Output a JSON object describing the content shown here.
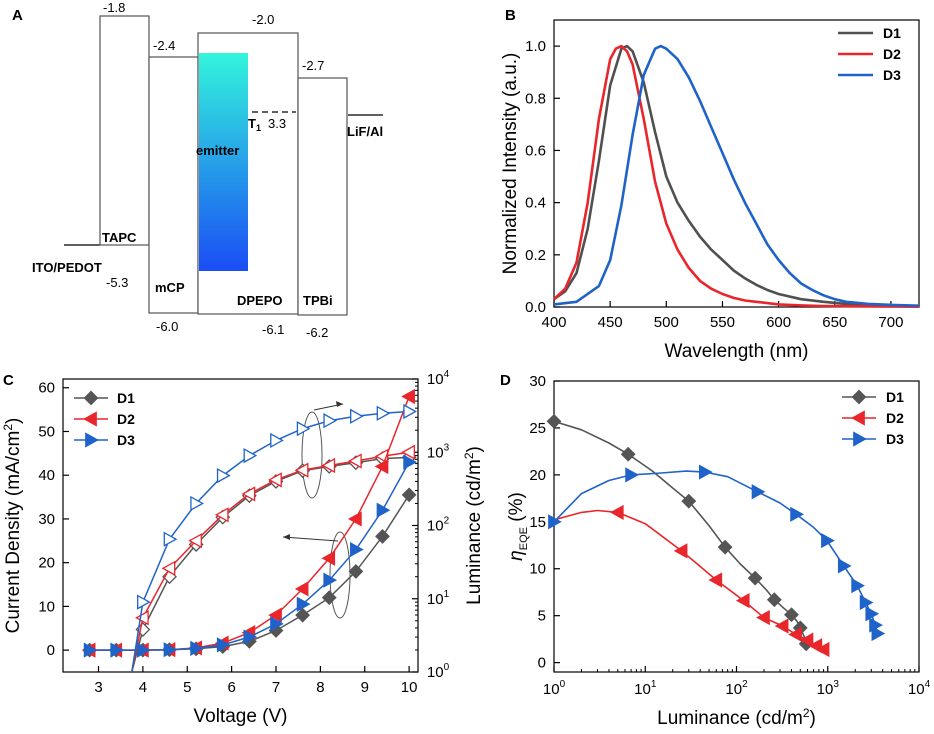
{
  "panels": [
    {
      "id": "A",
      "label": "A"
    },
    {
      "id": "B",
      "label": "B"
    },
    {
      "id": "C",
      "label": "C"
    },
    {
      "id": "D",
      "label": "D"
    }
  ],
  "energy_diagram": {
    "layers": [
      {
        "name": "ITO/PEDOT",
        "level": "-5.3"
      },
      {
        "name": "TAPC",
        "top": "-1.8",
        "bottom": "-5.3"
      },
      {
        "name": "mCP",
        "top": "-2.4",
        "bottom": "-6.0"
      },
      {
        "name": "DPEPO",
        "top": "-2.0",
        "bottom": "-6.1"
      },
      {
        "name": "TPBi",
        "top": "-2.7",
        "bottom": "-6.2"
      },
      {
        "name": "LiF/Al",
        "level": ""
      }
    ],
    "emitter_label": "emitter",
    "triplet_label": "T",
    "triplet_sub": "1",
    "triplet_value": "3.3",
    "colors": {
      "emitter_top": "#33f5dc",
      "emitter_bottom": "#1a4df5"
    }
  },
  "chart_data": [
    {
      "id": "B",
      "type": "line",
      "title": "",
      "xlabel": "Wavelength (nm)",
      "ylabel": "Normalized Intensity (a.u.)",
      "xlim": [
        400,
        725
      ],
      "ylim": [
        0,
        1.1
      ],
      "xticks": [
        400,
        450,
        500,
        550,
        600,
        650,
        700
      ],
      "yticks": [
        0.0,
        0.2,
        0.4,
        0.6,
        0.8,
        1.0
      ],
      "xtick_labels": [
        "400",
        "450",
        "500",
        "550",
        "600",
        "650",
        "700"
      ],
      "ytick_labels": [
        "0.0",
        "0.2",
        "0.4",
        "0.6",
        "0.8",
        "1.0"
      ],
      "legend": {
        "position": "top-right"
      },
      "series": [
        {
          "name": "D1",
          "color": "#505050",
          "x": [
            400,
            410,
            420,
            430,
            440,
            450,
            460,
            465,
            470,
            480,
            490,
            500,
            510,
            520,
            530,
            540,
            550,
            560,
            570,
            580,
            590,
            600,
            620,
            640,
            660,
            680,
            700,
            725
          ],
          "y": [
            0.03,
            0.06,
            0.13,
            0.3,
            0.56,
            0.85,
            0.99,
            1.0,
            0.98,
            0.86,
            0.67,
            0.5,
            0.4,
            0.33,
            0.27,
            0.22,
            0.18,
            0.14,
            0.11,
            0.085,
            0.065,
            0.05,
            0.03,
            0.02,
            0.012,
            0.008,
            0.005,
            0.003
          ]
        },
        {
          "name": "D2",
          "color": "#e8262c",
          "x": [
            400,
            410,
            420,
            430,
            440,
            450,
            455,
            460,
            465,
            470,
            480,
            490,
            500,
            510,
            520,
            530,
            540,
            550,
            560,
            570,
            580,
            600,
            620,
            640,
            660,
            700,
            725
          ],
          "y": [
            0.03,
            0.07,
            0.17,
            0.4,
            0.72,
            0.95,
            0.99,
            1.0,
            0.98,
            0.93,
            0.72,
            0.48,
            0.32,
            0.22,
            0.15,
            0.1,
            0.07,
            0.05,
            0.035,
            0.025,
            0.02,
            0.01,
            0.006,
            0.004,
            0.003,
            0.002,
            0.001
          ]
        },
        {
          "name": "D3",
          "color": "#1f63c9",
          "x": [
            400,
            420,
            440,
            450,
            460,
            470,
            480,
            490,
            495,
            500,
            510,
            520,
            530,
            540,
            550,
            560,
            570,
            580,
            590,
            600,
            610,
            620,
            630,
            640,
            650,
            660,
            680,
            700,
            725
          ],
          "y": [
            0.01,
            0.02,
            0.08,
            0.18,
            0.39,
            0.66,
            0.89,
            0.99,
            1.0,
            0.99,
            0.95,
            0.88,
            0.79,
            0.69,
            0.59,
            0.49,
            0.4,
            0.32,
            0.24,
            0.18,
            0.13,
            0.09,
            0.065,
            0.045,
            0.03,
            0.02,
            0.012,
            0.008,
            0.005
          ]
        }
      ]
    },
    {
      "id": "C",
      "type": "line",
      "xlabel": "Voltage (V)",
      "ylabel": "Current Density (mA/cm",
      "ylabel_sup": "2",
      "ylabel_tail": ")",
      "y2label": "Luminance (cd/m",
      "y2label_sup": "2",
      "y2label_tail": ")",
      "xlim": [
        2.2,
        10.2
      ],
      "ylim": [
        -5,
        62
      ],
      "y2lim_log": [
        0,
        4
      ],
      "xticks": [
        3,
        4,
        5,
        6,
        7,
        8,
        9,
        10
      ],
      "xtick_labels": [
        "3",
        "4",
        "5",
        "6",
        "7",
        "8",
        "9",
        "10"
      ],
      "yticks": [
        0,
        10,
        20,
        30,
        40,
        50,
        60
      ],
      "ytick_labels": [
        "0",
        "10",
        "20",
        "30",
        "40",
        "50",
        "60"
      ],
      "y2ticks": [
        {
          "base": "10",
          "exp": "0"
        },
        {
          "base": "10",
          "exp": "1"
        },
        {
          "base": "10",
          "exp": "2"
        },
        {
          "base": "10",
          "exp": "3"
        },
        {
          "base": "10",
          "exp": "4"
        }
      ],
      "legend": {
        "position": "top-left"
      },
      "series": [
        {
          "name": "D1",
          "color": "#555555",
          "marker": "diamond",
          "x": [
            2.8,
            3.4,
            4.0,
            4.6,
            5.2,
            5.8,
            6.4,
            7.0,
            7.6,
            8.2,
            8.8,
            9.4,
            10.0
          ],
          "current": [
            0,
            0,
            0,
            0.1,
            0.3,
            0.8,
            2.0,
            4.5,
            8.0,
            12.0,
            18.0,
            26.0,
            35.5
          ],
          "luminance": [
            null,
            null,
            3.8,
            20,
            55,
            130,
            255,
            400,
            560,
            640,
            720,
            820,
            850
          ]
        },
        {
          "name": "D2",
          "color": "#e8262c",
          "marker": "triangle-left",
          "x": [
            2.8,
            3.4,
            4.0,
            4.6,
            5.2,
            5.8,
            6.4,
            7.0,
            7.6,
            8.2,
            8.8,
            9.4,
            10.0
          ],
          "current": [
            0,
            0,
            0,
            0.1,
            0.5,
            1.6,
            4.0,
            8.0,
            14.0,
            21.0,
            30.0,
            42.0,
            58.0
          ],
          "luminance": [
            null,
            null,
            5.5,
            26,
            62,
            140,
            270,
            420,
            570,
            660,
            760,
            880,
            1000
          ]
        },
        {
          "name": "D3",
          "color": "#1f63c9",
          "marker": "triangle-right",
          "x": [
            2.8,
            3.4,
            4.0,
            4.6,
            5.2,
            5.8,
            6.4,
            7.0,
            7.6,
            8.2,
            8.8,
            9.4,
            10.0
          ],
          "current": [
            0,
            0,
            0,
            0.1,
            0.4,
            1.2,
            3.0,
            6.0,
            10.5,
            16.0,
            23.0,
            32.0,
            43.0
          ],
          "luminance": [
            null,
            null,
            9,
            65,
            200,
            480,
            900,
            1450,
            2100,
            2700,
            3100,
            3400,
            3600
          ]
        }
      ]
    },
    {
      "id": "D",
      "type": "line",
      "xlabel": "Luminance (cd/m",
      "xlabel_sup": "2",
      "xlabel_tail": ")",
      "ylabel_sym": "η",
      "ylabel_sub": "EQE",
      "ylabel_tail": " (%)",
      "xlim_log": [
        0,
        4
      ],
      "ylim": [
        -1,
        30
      ],
      "xticks": [
        {
          "base": "10",
          "exp": "0"
        },
        {
          "base": "10",
          "exp": "1"
        },
        {
          "base": "10",
          "exp": "2"
        },
        {
          "base": "10",
          "exp": "3"
        },
        {
          "base": "10",
          "exp": "4"
        }
      ],
      "yticks": [
        0,
        5,
        10,
        15,
        20,
        25,
        30
      ],
      "ytick_labels": [
        "0",
        "5",
        "10",
        "15",
        "20",
        "25",
        "30"
      ],
      "legend": {
        "position": "top-right"
      },
      "series": [
        {
          "name": "D1",
          "color": "#555555",
          "marker": "diamond",
          "x": [
            1,
            6.5,
            30,
            75,
            160,
            260,
            400,
            500,
            580
          ],
          "y": [
            25.7,
            22.2,
            17.2,
            12.3,
            9.0,
            6.7,
            5.1,
            3.7,
            2.0
          ],
          "line_x": [
            1,
            2,
            4,
            6.5,
            12,
            20,
            30,
            50,
            75,
            110,
            160,
            210,
            260,
            330,
            400,
            460,
            500,
            550,
            580
          ],
          "line_y": [
            25.7,
            24.8,
            23.4,
            22.2,
            20.4,
            18.6,
            17.2,
            14.6,
            12.3,
            10.5,
            9.0,
            7.8,
            6.7,
            5.8,
            5.1,
            4.4,
            3.7,
            2.8,
            2.0
          ]
        },
        {
          "name": "D2",
          "color": "#e8262c",
          "marker": "triangle-left",
          "x": [
            5,
            25,
            60,
            120,
            200,
            320,
            450,
            600,
            750,
            900
          ],
          "y": [
            16.0,
            11.9,
            8.8,
            6.6,
            4.8,
            3.9,
            3.0,
            2.4,
            1.8,
            1.4
          ],
          "line_x": [
            1,
            2,
            3,
            5,
            10,
            25,
            60,
            120,
            200,
            320,
            450,
            600,
            750,
            900
          ],
          "line_y": [
            15.2,
            16.0,
            16.2,
            16.0,
            14.8,
            11.9,
            8.8,
            6.6,
            4.8,
            3.9,
            3.0,
            2.4,
            1.8,
            1.4
          ]
        },
        {
          "name": "D3",
          "color": "#1f63c9",
          "marker": "triangle-right",
          "x": [
            1,
            7,
            45,
            170,
            450,
            980,
            1500,
            2100,
            2600,
            3000,
            3300,
            3500
          ],
          "y": [
            15.0,
            20.0,
            20.3,
            18.2,
            15.8,
            13.0,
            10.3,
            8.2,
            6.4,
            5.2,
            4.0,
            3.1
          ],
          "line_x": [
            1,
            2,
            4,
            7,
            15,
            28,
            45,
            80,
            170,
            300,
            450,
            700,
            980,
            1500,
            2100,
            2600,
            3000,
            3300,
            3500
          ],
          "line_y": [
            15.0,
            18.0,
            19.4,
            20.0,
            20.2,
            20.4,
            20.3,
            19.8,
            18.2,
            17.0,
            15.8,
            14.4,
            13.0,
            10.3,
            8.2,
            6.4,
            5.2,
            4.0,
            3.1
          ]
        }
      ]
    }
  ]
}
